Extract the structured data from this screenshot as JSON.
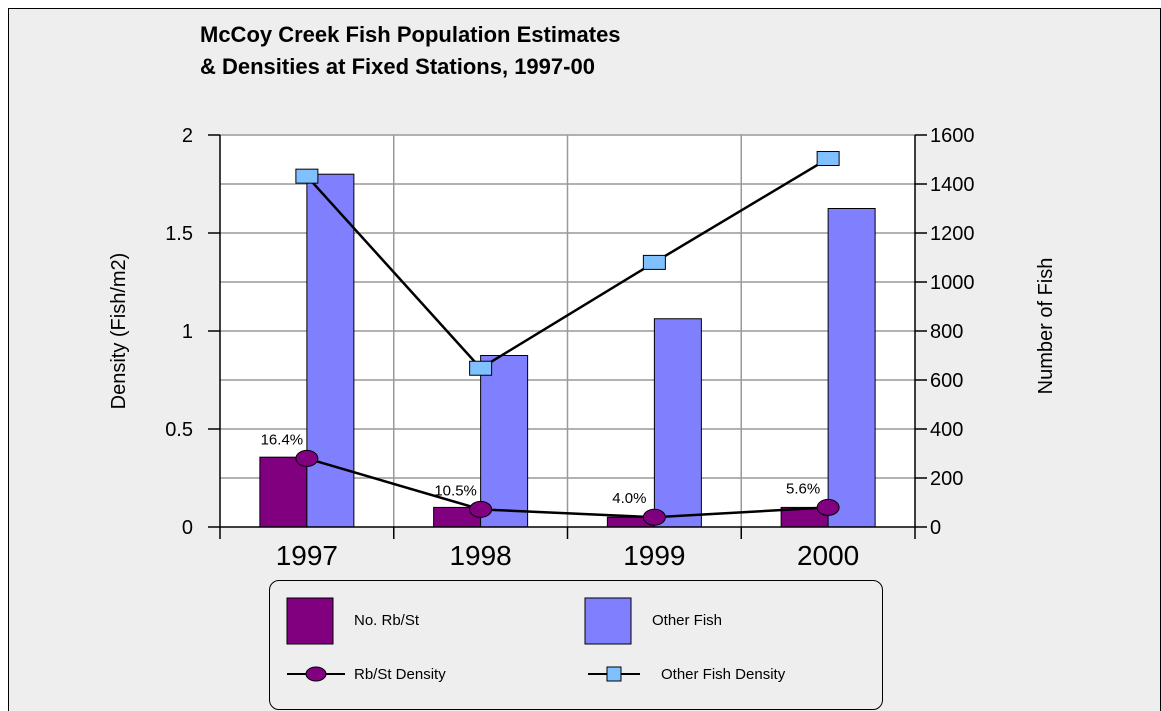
{
  "colors": {
    "background": "#eeeeee",
    "plot_area": "#ffffff",
    "rbst_bar": "#800080",
    "other_bar": "#8080ff",
    "rbst_line": "#000000",
    "rbst_marker": "#800080",
    "other_line": "#000000",
    "other_marker": "#80c0ff",
    "grid": "#999999"
  },
  "chart_data": {
    "type": "bar",
    "title_lines": [
      "McCoy Creek Fish Population Estimates",
      "& Densities at Fixed Stations, 1997-00"
    ],
    "categories": [
      "1997",
      "1998",
      "1999",
      "2000"
    ],
    "y_left": {
      "label": "Density (Fish/m2)",
      "min": 0,
      "max": 2,
      "ticks": [
        "0",
        "0.5",
        "1",
        "1.5",
        "2"
      ],
      "tick_values": [
        0,
        0.5,
        1,
        1.5,
        2
      ]
    },
    "y_right": {
      "label": "Number of Fish",
      "min": 0,
      "max": 1600,
      "ticks": [
        "0",
        "200",
        "400",
        "600",
        "800",
        "1000",
        "1200",
        "1400",
        "1600"
      ],
      "tick_values": [
        0,
        200,
        400,
        600,
        800,
        1000,
        1200,
        1400,
        1600
      ]
    },
    "bar_series": [
      {
        "name": "No. Rb/St",
        "axis": "right",
        "values": [
          285,
          80,
          40,
          80
        ]
      },
      {
        "name": "Other Fish",
        "axis": "right",
        "values": [
          1440,
          700,
          850,
          1300
        ]
      }
    ],
    "line_series": [
      {
        "name": "Rb/St Density",
        "axis": "left",
        "values": [
          0.35,
          0.09,
          0.05,
          0.1
        ],
        "point_labels": [
          "16.4%",
          "10.5%",
          "4.0%",
          "5.6%"
        ]
      },
      {
        "name": "Other Fish Density",
        "axis": "left",
        "values": [
          1.79,
          0.81,
          1.35,
          1.88
        ]
      }
    ],
    "grid": true,
    "legend_position": "bottom"
  }
}
